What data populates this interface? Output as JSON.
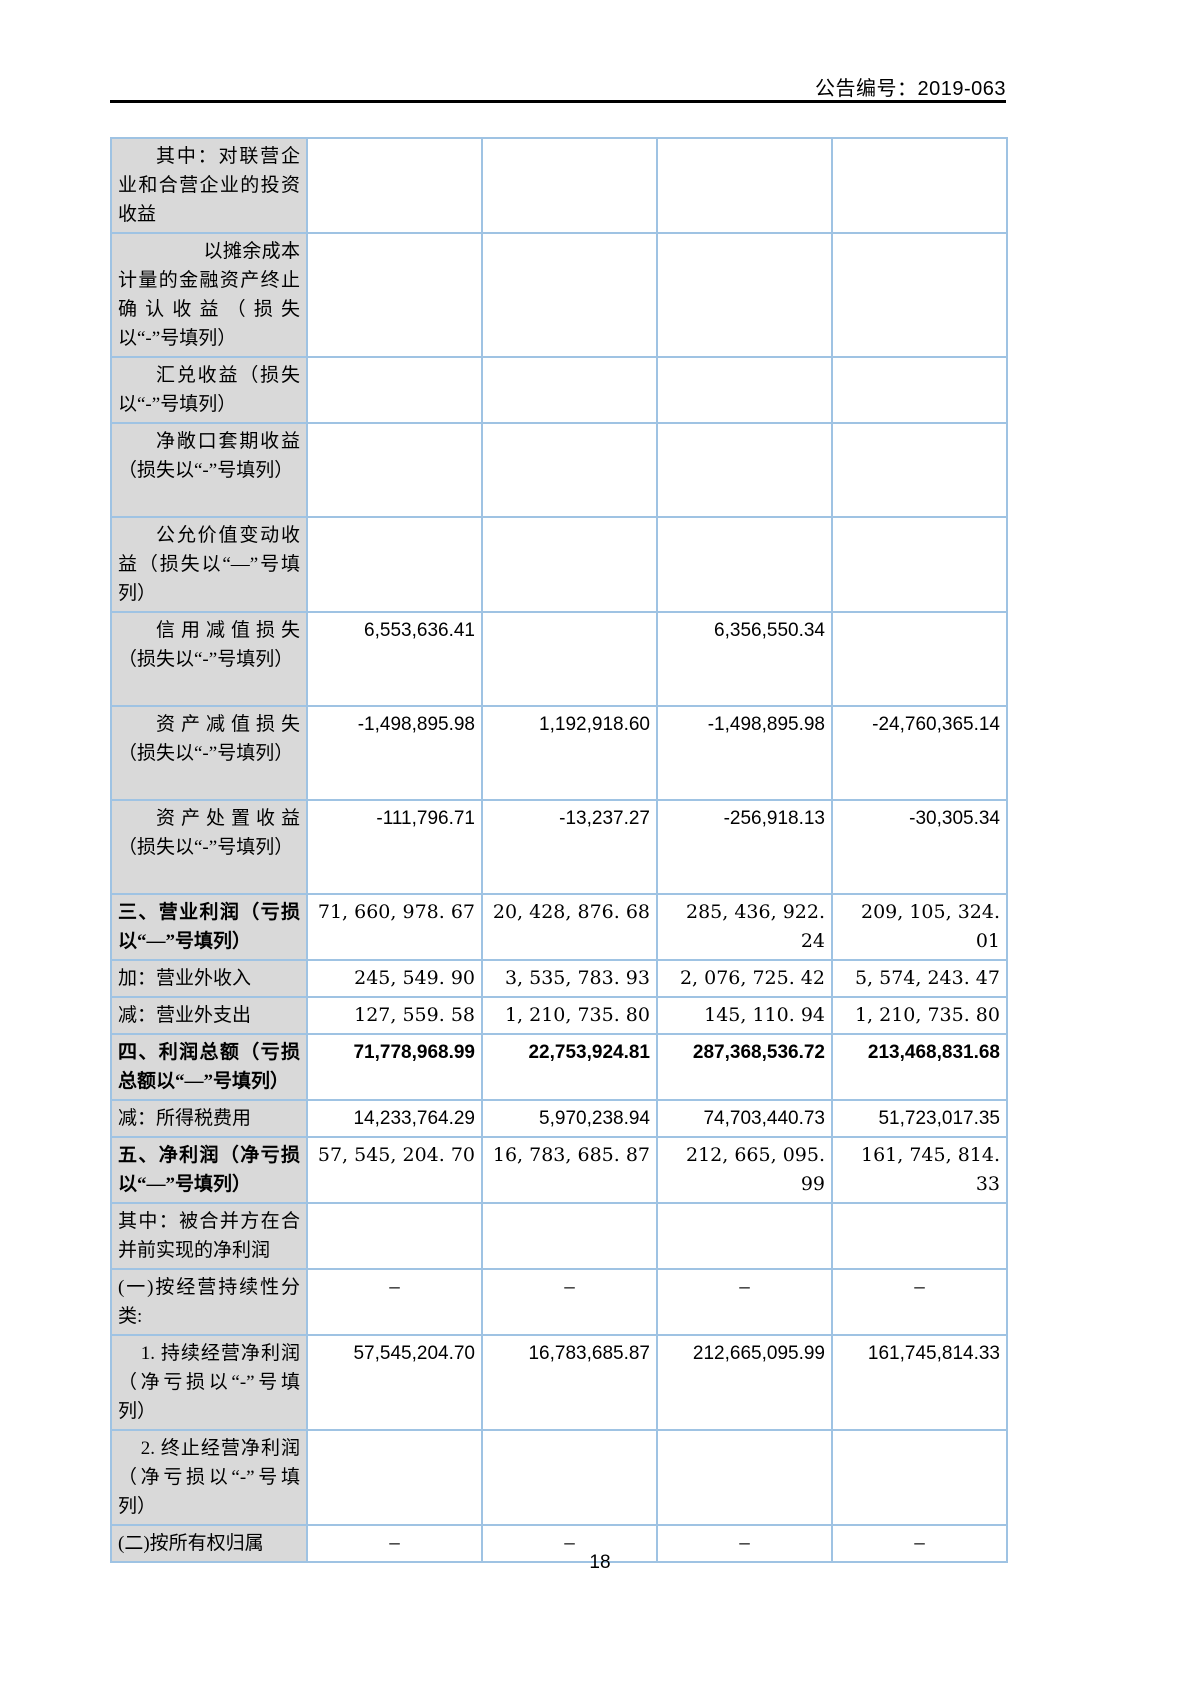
{
  "header": {
    "doc_number": "公告编号：2019-063"
  },
  "table": {
    "rows": [
      {
        "label": "其中：对联营企业和合营企业的投资收益",
        "indent": 2,
        "bold": false,
        "num_style": "sans",
        "lines": 3,
        "values": [
          "",
          "",
          "",
          ""
        ]
      },
      {
        "label": "以摊余成本计量的金融资产终止确认收益（损失以“-”号填列）",
        "indent": 4,
        "bold": false,
        "num_style": "sans",
        "lines": 4,
        "values": [
          "",
          "",
          "",
          ""
        ]
      },
      {
        "label": "汇兑收益（损失以“-”号填列）",
        "indent": 2,
        "bold": false,
        "num_style": "sans",
        "lines": 2,
        "values": [
          "",
          "",
          "",
          ""
        ]
      },
      {
        "label": "净敞口套期收益（损失以“-”号填列）",
        "indent": 2,
        "bold": false,
        "num_style": "sans",
        "lines": 3,
        "values": [
          "",
          "",
          "",
          ""
        ]
      },
      {
        "label": "公允价值变动收益（损失以“—”号填列）",
        "indent": 2,
        "bold": false,
        "num_style": "sans",
        "lines": 3,
        "values": [
          "",
          "",
          "",
          ""
        ]
      },
      {
        "label": "信用减值损失（损失以“-”号填列）",
        "indent": 2,
        "bold": false,
        "num_style": "sans",
        "lines": 3,
        "values": [
          "6,553,636.41",
          "",
          "6,356,550.34",
          ""
        ]
      },
      {
        "label": "资产减值损失（损失以“-”号填列）",
        "indent": 2,
        "bold": false,
        "num_style": "sans",
        "lines": 3,
        "values": [
          "-1,498,895.98",
          "1,192,918.60",
          "-1,498,895.98",
          "-24,760,365.14"
        ]
      },
      {
        "label": "资产处置收益（损失以“-”号填列）",
        "indent": 2,
        "bold": false,
        "num_style": "sans",
        "lines": 3,
        "values": [
          "-111,796.71",
          "-13,237.27",
          "-256,918.13",
          "-30,305.34"
        ]
      },
      {
        "label": "三、营业利润（亏损以“—”号填列）",
        "indent": 0,
        "bold": true,
        "num_style": "serif",
        "lines": 2,
        "values": [
          "71, 660, 978. 67",
          "20, 428, 876. 68",
          "285, 436, 922. 24",
          "209, 105, 324. 01"
        ]
      },
      {
        "label": "加：营业外收入",
        "indent": 0,
        "bold": false,
        "num_style": "serif",
        "lines": 1,
        "values": [
          "245, 549. 90",
          "3, 535, 783. 93",
          "2, 076, 725. 42",
          "5, 574, 243. 47"
        ]
      },
      {
        "label": "减：营业外支出",
        "indent": 0,
        "bold": false,
        "num_style": "serif",
        "lines": 1,
        "values": [
          "127, 559. 58",
          "1, 210, 735. 80",
          "145, 110. 94",
          "1, 210, 735. 80"
        ]
      },
      {
        "label": "四、利润总额（亏损总额以“—”号填列）",
        "indent": 0,
        "bold": true,
        "num_style": "sansbold",
        "lines": 2,
        "values": [
          "71,778,968.99",
          "22,753,924.81",
          "287,368,536.72",
          "213,468,831.68"
        ]
      },
      {
        "label": "减：所得税费用",
        "indent": 0,
        "bold": false,
        "num_style": "sans",
        "lines": 1,
        "values": [
          "14,233,764.29",
          "5,970,238.94",
          "74,703,440.73",
          "51,723,017.35"
        ]
      },
      {
        "label": "五、净利润（净亏损以“—”号填列）",
        "indent": 0,
        "bold": true,
        "num_style": "serif",
        "lines": 2,
        "values": [
          "57, 545, 204. 70",
          "16, 783, 685. 87",
          "212, 665, 095. 99",
          "161, 745, 814. 33"
        ]
      },
      {
        "label": "其中：被合并方在合并前实现的净利润",
        "indent": 0,
        "bold": false,
        "num_style": "sans",
        "lines": 2,
        "values": [
          "",
          "",
          "",
          ""
        ]
      },
      {
        "label": "(一)按经营持续性分类:",
        "indent": 0,
        "bold": false,
        "num_style": "dash",
        "lines": 2,
        "values": [
          "–",
          "–",
          "–",
          "–"
        ]
      },
      {
        "label": "1. 持续经营净利润（净亏损以“-”号填列）",
        "indent": 1,
        "bold": false,
        "num_style": "sans",
        "lines": 3,
        "values": [
          "57,545,204.70",
          "16,783,685.87",
          "212,665,095.99",
          "161,745,814.33"
        ]
      },
      {
        "label": "2. 终止经营净利润（净亏损以“-”号填列）",
        "indent": 1,
        "bold": false,
        "num_style": "sans",
        "lines": 3,
        "values": [
          "",
          "",
          "",
          ""
        ]
      },
      {
        "label": "(二)按所有权归属",
        "indent": 0,
        "bold": false,
        "num_style": "dash",
        "lines": 1,
        "values": [
          "–",
          "–",
          "–",
          "–"
        ]
      }
    ]
  },
  "footer": {
    "page_number": "18"
  },
  "colors": {
    "table_border": "#9fc3e3",
    "label_background": "#d9d9d9",
    "header_rule": "#000000"
  }
}
